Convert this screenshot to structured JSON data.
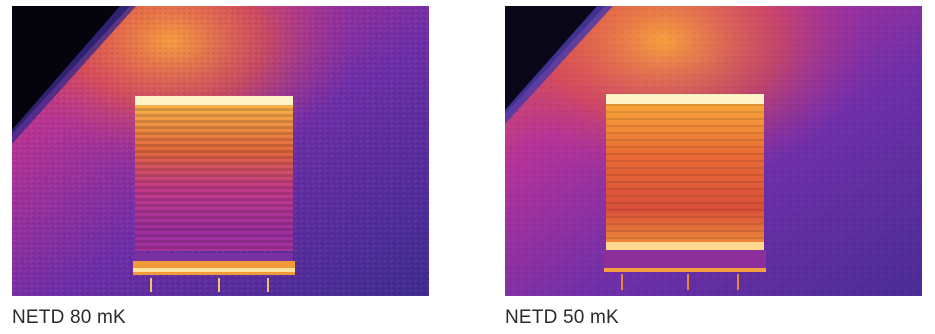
{
  "images": [
    {
      "caption": "NETD 80 mK"
    },
    {
      "caption": "NETD 50 mK"
    }
  ],
  "palette": {
    "cold": "#3a2a8c",
    "cool": "#6a2fa8",
    "mid": "#b0309a",
    "warm": "#e8583a",
    "hot": "#f7a234",
    "hottest": "#fff3c4",
    "roof_dark": "#05040c"
  }
}
